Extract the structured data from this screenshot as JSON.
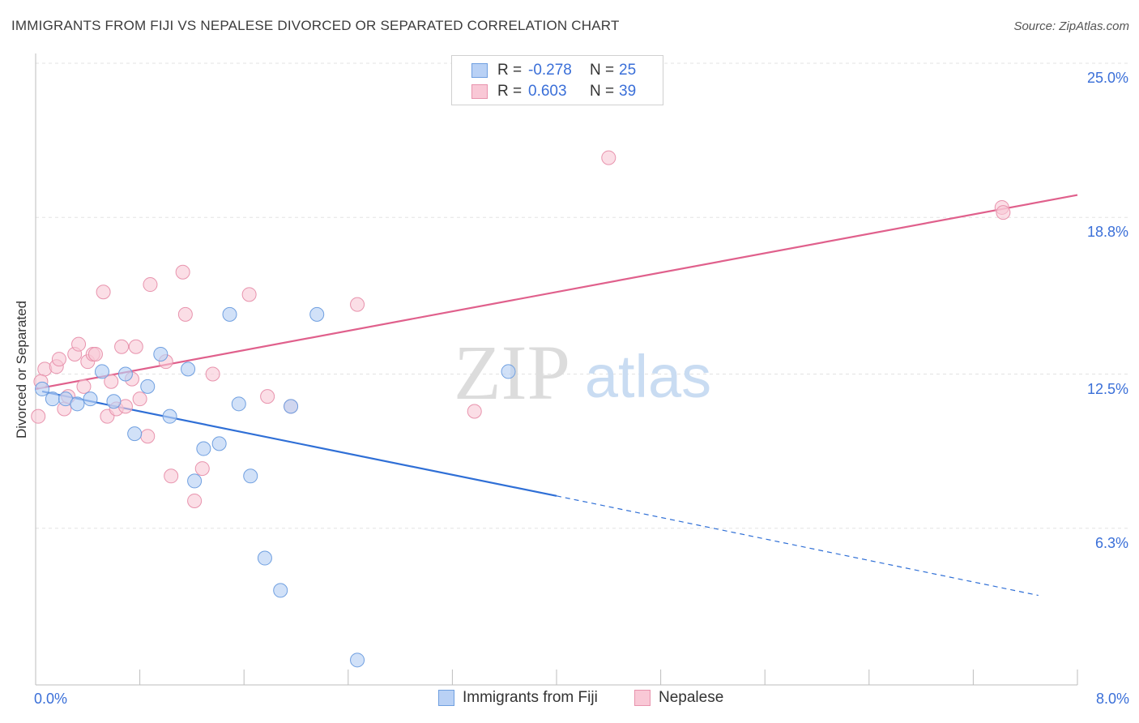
{
  "title": "IMMIGRANTS FROM FIJI VS NEPALESE DIVORCED OR SEPARATED CORRELATION CHART",
  "source": "Source: ZipAtlas.com",
  "watermark": {
    "zip": "ZIP",
    "atlas": "atlas"
  },
  "legend": {
    "rows": [
      {
        "r_label": "R =",
        "r_value": "-0.278",
        "n_label": "N =",
        "n_value": "25"
      },
      {
        "r_label": "R =",
        "r_value": "0.603",
        "n_label": "N =",
        "n_value": "39"
      }
    ]
  },
  "bottom_legend": [
    "Immigrants from Fiji",
    "Nepalese"
  ],
  "chart_data": {
    "type": "scatter",
    "title": "IMMIGRANTS FROM FIJI VS NEPALESE DIVORCED OR SEPARATED CORRELATION CHART",
    "xlabel": "",
    "ylabel": "Divorced or Separated",
    "xlim": [
      0.0,
      8.0
    ],
    "ylim": [
      0.0,
      25.0
    ],
    "x_tick_labels": [
      "0.0%",
      "8.0%"
    ],
    "y_ticks": [
      6.3,
      12.5,
      18.8,
      25.0
    ],
    "y_tick_labels": [
      "6.3%",
      "12.5%",
      "18.8%",
      "25.0%"
    ],
    "grid": "horizontal dashed",
    "legend_position": "top-center",
    "colors": {
      "fiji_fill": "#b9d1f5",
      "fiji_stroke": "#6f9fe0",
      "fiji_line": "#2f6fd6",
      "nepal_fill": "#f9c8d6",
      "nepal_stroke": "#e893ad",
      "nepal_line": "#e0608c",
      "tick_text": "#3a6fd8"
    },
    "series": [
      {
        "name": "Immigrants from Fiji",
        "points": [
          [
            0.05,
            11.9
          ],
          [
            0.13,
            11.5
          ],
          [
            0.23,
            11.5
          ],
          [
            0.32,
            11.3
          ],
          [
            0.42,
            11.5
          ],
          [
            0.51,
            12.6
          ],
          [
            0.6,
            11.4
          ],
          [
            0.69,
            12.5
          ],
          [
            0.76,
            10.1
          ],
          [
            0.86,
            12.0
          ],
          [
            0.96,
            13.3
          ],
          [
            1.03,
            10.8
          ],
          [
            1.17,
            12.7
          ],
          [
            1.22,
            8.2
          ],
          [
            1.29,
            9.5
          ],
          [
            1.41,
            9.7
          ],
          [
            1.49,
            14.9
          ],
          [
            1.56,
            11.3
          ],
          [
            1.65,
            8.4
          ],
          [
            1.76,
            5.1
          ],
          [
            1.88,
            3.8
          ],
          [
            1.96,
            11.2
          ],
          [
            2.16,
            14.9
          ],
          [
            2.47,
            1.0
          ],
          [
            3.63,
            12.6
          ]
        ],
        "trend": {
          "x": [
            0.05,
            4.0
          ],
          "y": [
            11.8,
            7.6
          ]
        },
        "trend_extension": {
          "x": [
            4.0,
            7.7
          ],
          "y": [
            7.6,
            3.6
          ]
        }
      },
      {
        "name": "Nepalese",
        "points": [
          [
            0.02,
            10.8
          ],
          [
            0.07,
            12.7
          ],
          [
            0.16,
            12.8
          ],
          [
            0.18,
            13.1
          ],
          [
            0.22,
            11.1
          ],
          [
            0.25,
            11.6
          ],
          [
            0.3,
            13.3
          ],
          [
            0.33,
            13.7
          ],
          [
            0.37,
            12.0
          ],
          [
            0.4,
            13.0
          ],
          [
            0.44,
            13.3
          ],
          [
            0.46,
            13.3
          ],
          [
            0.52,
            15.8
          ],
          [
            0.55,
            10.8
          ],
          [
            0.58,
            12.2
          ],
          [
            0.62,
            11.1
          ],
          [
            0.66,
            13.6
          ],
          [
            0.69,
            11.2
          ],
          [
            0.74,
            12.3
          ],
          [
            0.77,
            13.6
          ],
          [
            0.8,
            11.5
          ],
          [
            0.86,
            10.0
          ],
          [
            0.88,
            16.1
          ],
          [
            1.0,
            13.0
          ],
          [
            1.04,
            8.4
          ],
          [
            1.13,
            16.6
          ],
          [
            1.15,
            14.9
          ],
          [
            1.22,
            7.4
          ],
          [
            1.28,
            8.7
          ],
          [
            1.36,
            12.5
          ],
          [
            1.64,
            15.7
          ],
          [
            1.78,
            11.6
          ],
          [
            1.96,
            11.2
          ],
          [
            2.47,
            15.3
          ],
          [
            3.37,
            11.0
          ],
          [
            4.4,
            21.2
          ],
          [
            7.42,
            19.2
          ],
          [
            7.43,
            19.0
          ],
          [
            0.04,
            12.2
          ]
        ],
        "trend": {
          "x": [
            0.0,
            8.0
          ],
          "y": [
            11.9,
            19.7
          ]
        }
      }
    ]
  }
}
